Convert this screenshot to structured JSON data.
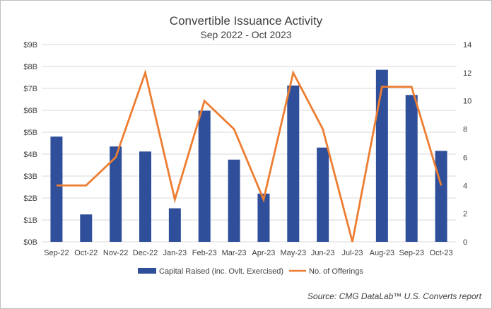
{
  "chart_data": {
    "type": "bar+line",
    "title": "Convertible Issuance Activity",
    "subtitle": "Sep 2022 - Oct 2023",
    "categories": [
      "Sep-22",
      "Oct-22",
      "Nov-22",
      "Dec-22",
      "Jan-23",
      "Feb-23",
      "Mar-23",
      "Apr-23",
      "May-23",
      "Jun-23",
      "Jul-23",
      "Aug-23",
      "Sep-23",
      "Oct-23"
    ],
    "series": [
      {
        "name": "Capital Raised (inc. Ovlt. Exercised)",
        "type": "bar",
        "axis": "left",
        "color": "#2F4F9A",
        "values": [
          4.8,
          1.25,
          4.35,
          4.12,
          1.53,
          5.98,
          3.75,
          2.2,
          7.13,
          4.3,
          0,
          7.85,
          6.7,
          4.15
        ]
      },
      {
        "name": "No. of Offerings",
        "type": "line",
        "axis": "right",
        "color": "#ED7D31",
        "values": [
          4,
          4,
          6,
          12,
          3,
          10,
          8,
          3,
          12,
          8,
          0,
          11,
          11,
          4
        ]
      }
    ],
    "y_left": {
      "min": 0,
      "max": 9,
      "ticks": [
        "$0B",
        "$1B",
        "$2B",
        "$3B",
        "$4B",
        "$5B",
        "$6B",
        "$7B",
        "$8B",
        "$9B"
      ]
    },
    "y_right": {
      "min": 0,
      "max": 14,
      "ticks": [
        "0",
        "2",
        "4",
        "6",
        "8",
        "10",
        "12",
        "14"
      ]
    },
    "grid": true,
    "legend": "bottom"
  },
  "source_text": "Source: CMG DataLab™ U.S. Converts report"
}
